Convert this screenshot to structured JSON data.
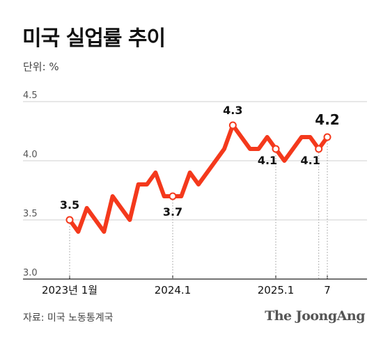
{
  "header": {
    "title": "미국 실업률 추이",
    "unit": "단위: %"
  },
  "footer": {
    "source": "자료: 미국 노동통계국",
    "logo": "The JoongAng"
  },
  "colors": {
    "line": "#f4391c",
    "grid": "#cfcfcf",
    "axis": "#222222",
    "text": "#111111"
  },
  "chart_data": {
    "type": "line",
    "title": "미국 실업률 추이",
    "ylabel": "단위: %",
    "ylim": [
      3.0,
      4.5
    ],
    "yticks": [
      "3.0",
      "3.5",
      "4.0",
      "4.5"
    ],
    "grid": true,
    "x_tick_labels": [
      {
        "index": 0,
        "label": "2023년 1월"
      },
      {
        "index": 12,
        "label": "2024.1"
      },
      {
        "index": 24,
        "label": "2025.1"
      },
      {
        "index": 30,
        "label": "7"
      }
    ],
    "series": [
      {
        "values": [
          3.5,
          3.4,
          3.6,
          3.5,
          3.4,
          3.7,
          3.6,
          3.5,
          3.8,
          3.8,
          3.9,
          3.7,
          3.7,
          3.7,
          3.9,
          3.8,
          3.9,
          4.0,
          4.1,
          4.3,
          4.2,
          4.1,
          4.1,
          4.2,
          4.1,
          4.0,
          4.1,
          4.2,
          4.2,
          4.1,
          4.2
        ]
      }
    ],
    "annotations": [
      {
        "index": 0,
        "label": "3.5"
      },
      {
        "index": 12,
        "label": "3.7"
      },
      {
        "index": 19,
        "label": "4.3"
      },
      {
        "index": 24,
        "label": "4.1"
      },
      {
        "index": 29,
        "label": "4.1"
      },
      {
        "index": 30,
        "label": "4.2"
      }
    ]
  }
}
